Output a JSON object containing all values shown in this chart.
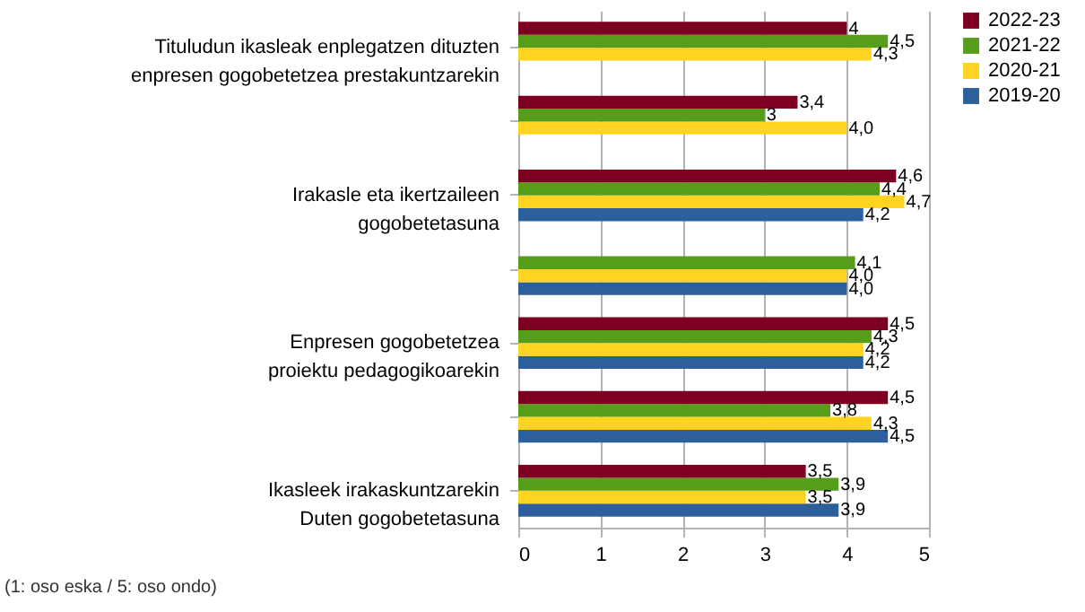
{
  "chart_data": {
    "type": "bar",
    "orientation": "horizontal",
    "categories": [
      "Tituludun ikasleak enplegatzen dituzten enpresen gogobetetzea prestakuntzarekin",
      null,
      "Irakasle eta ikertzaileen gogobetetasuna",
      null,
      "Enpresen gogobetetzea proiektu pedagogikoarekin",
      null,
      "Ikasleek irakaskuntzarekin Duten gogobetetasuna"
    ],
    "series": [
      {
        "name": "2019-20",
        "color": "#2c5f9b",
        "values": [
          null,
          null,
          4.2,
          4.0,
          4.2,
          4.5,
          3.9
        ],
        "value_labels": [
          null,
          null,
          "4,2",
          "4,0",
          "4,2",
          "4,5",
          "3,9"
        ]
      },
      {
        "name": "2020-21",
        "color": "#ffd320",
        "values": [
          4.3,
          4.0,
          4.7,
          4.0,
          4.2,
          4.3,
          3.5
        ],
        "value_labels": [
          "4,3",
          "4,0",
          "4,7",
          "4,0",
          "4,2",
          "4,3",
          "3,5"
        ]
      },
      {
        "name": "2021-22",
        "color": "#579d1c",
        "values": [
          4.5,
          3,
          4.4,
          4.1,
          4.3,
          3.8,
          3.9
        ],
        "value_labels": [
          "4,5",
          "3",
          "4,4",
          "4,1",
          "4,3",
          "3,8",
          "3,9"
        ]
      },
      {
        "name": "2022-23",
        "color": "#7e0021",
        "values": [
          4,
          3.4,
          4.6,
          null,
          4.5,
          4.5,
          3.5
        ],
        "value_labels": [
          "4",
          "3,4",
          "4,6",
          null,
          "4,5",
          "4,5",
          "3,5"
        ]
      }
    ],
    "xlim": [
      0,
      5
    ],
    "xticks": [
      0,
      1,
      2,
      3,
      4,
      5
    ],
    "grid": "x",
    "legend": "right",
    "annotations": [
      "(1: oso eska / 5: oso ondo)"
    ]
  }
}
